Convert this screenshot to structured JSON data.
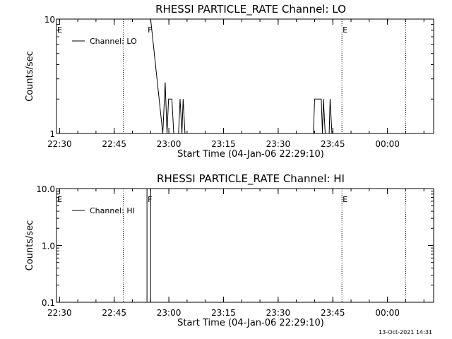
{
  "footer_stamp": "13-Oct-2021 14:31",
  "chart_data": [
    {
      "type": "line",
      "title": "RHESSI PARTICLE_RATE Channel: LO",
      "xlabel": "Start Time (04-Jan-06 22:29:10)",
      "ylabel": "Counts/sec",
      "y_scale": "log",
      "ylim": [
        1,
        10
      ],
      "y_ticks": [
        "1",
        "10"
      ],
      "xlim": [
        "22:29:10",
        "00:12:40"
      ],
      "x_ticks": [
        "22:30",
        "22:45",
        "23:00",
        "23:15",
        "23:30",
        "23:45",
        "00:00"
      ],
      "legend": {
        "entries": [
          "Channel: LO"
        ],
        "position": "top-left"
      },
      "grid": false,
      "event_markers": [
        {
          "label": "E",
          "time": "22:29:10",
          "line": false
        },
        {
          "label": "",
          "time": "22:47:30",
          "line": true
        },
        {
          "label": "F",
          "time": "22:54:00",
          "line": false
        },
        {
          "label": "E",
          "time": "23:47:30",
          "line": true
        },
        {
          "label": "",
          "time": "00:05:00",
          "line": true
        }
      ],
      "series": [
        {
          "name": "Channel: LO",
          "points": [
            [
              "22:54:00",
              10
            ],
            [
              "22:55:00",
              10
            ],
            [
              "22:58:20",
              1
            ],
            [
              "22:59:00",
              2.8
            ],
            [
              "22:59:30",
              1
            ],
            [
              "22:59:55",
              2
            ],
            [
              "23:00:50",
              2
            ],
            [
              "23:01:20",
              1
            ],
            [
              "23:02:40",
              1
            ],
            [
              "23:03:05",
              2
            ],
            [
              "23:03:35",
              1
            ],
            [
              "23:03:55",
              2
            ],
            [
              "23:04:25",
              1
            ],
            [
              "23:39:40",
              1
            ],
            [
              "23:40:00",
              2
            ],
            [
              "23:41:50",
              2
            ],
            [
              "23:42:10",
              1
            ],
            [
              "23:42:25",
              2
            ],
            [
              "23:42:55",
              1
            ],
            [
              "23:44:00",
              1
            ],
            [
              "23:44:15",
              2
            ],
            [
              "23:44:45",
              1
            ]
          ]
        }
      ]
    },
    {
      "type": "line",
      "title": "RHESSI PARTICLE_RATE Channel: HI",
      "xlabel": "Start Time (04-Jan-06 22:29:10)",
      "ylabel": "Counts/sec",
      "y_scale": "log",
      "ylim": [
        0.1,
        10
      ],
      "y_ticks": [
        "0.1",
        "1.0",
        "10.0"
      ],
      "xlim": [
        "22:29:10",
        "00:12:40"
      ],
      "x_ticks": [
        "22:30",
        "22:45",
        "23:00",
        "23:15",
        "23:30",
        "23:45",
        "00:00"
      ],
      "legend": {
        "entries": [
          "Channel: HI"
        ],
        "position": "top-left"
      },
      "grid": false,
      "event_markers": [
        {
          "label": "E",
          "time": "22:29:10",
          "line": false
        },
        {
          "label": "",
          "time": "22:47:30",
          "line": true
        },
        {
          "label": "F",
          "time": "22:54:00",
          "line": false
        },
        {
          "label": "E",
          "time": "23:47:30",
          "line": true
        },
        {
          "label": "",
          "time": "00:05:00",
          "line": true
        }
      ],
      "series": [
        {
          "name": "Channel: HI",
          "points": [
            [
              "22:54:00",
              10
            ],
            [
              "22:55:00",
              10
            ]
          ]
        }
      ]
    }
  ]
}
